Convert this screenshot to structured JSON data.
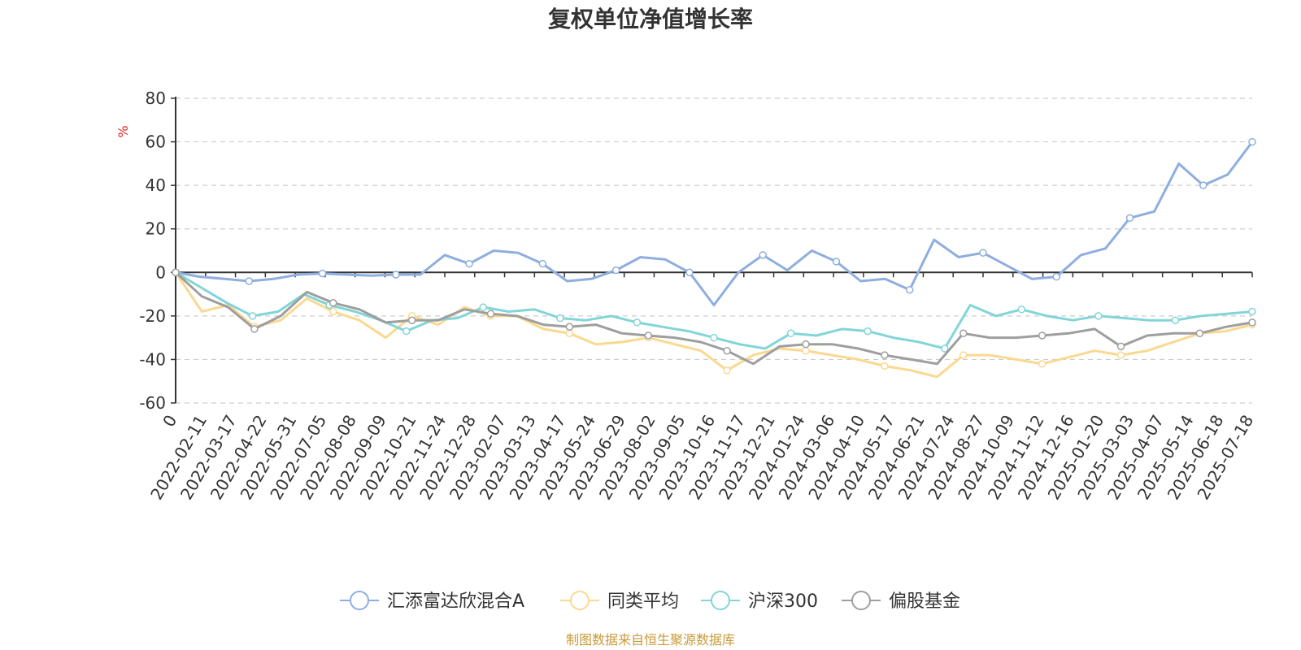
{
  "chart_data": {
    "type": "line",
    "title": "复权单位净值增长率",
    "ylabel": "%",
    "ylim": [
      -60,
      80
    ],
    "yticks": [
      80,
      60,
      40,
      20,
      0,
      -20,
      -40,
      -60
    ],
    "grid": true,
    "legend_position": "bottom",
    "x_tick_labels": [
      "0",
      "2022-02-11",
      "2022-03-17",
      "2022-04-22",
      "2022-05-31",
      "2022-07-05",
      "2022-08-08",
      "2022-09-09",
      "2022-10-21",
      "2022-11-24",
      "2022-12-28",
      "2023-02-07",
      "2023-03-13",
      "2023-04-17",
      "2023-05-24",
      "2023-06-29",
      "2023-08-02",
      "2023-09-05",
      "2023-10-16",
      "2023-11-17",
      "2023-12-21",
      "2024-01-24",
      "2024-03-06",
      "2024-04-10",
      "2024-05-17",
      "2024-06-21",
      "2024-07-24",
      "2024-08-27",
      "2024-10-09",
      "2024-11-12",
      "2024-12-16",
      "2025-01-20",
      "2025-03-03",
      "2025-04-07",
      "2025-05-14",
      "2025-06-18",
      "2025-07-18"
    ],
    "series": [
      {
        "name": "汇添富达欣混合A",
        "color": "#8eaee0",
        "values": [
          0,
          -2,
          -3,
          -4,
          -3,
          -1,
          -0.5,
          -1,
          -1.5,
          -1,
          -1,
          8,
          4,
          10,
          9,
          4,
          -4,
          -3,
          1,
          7,
          6,
          0,
          -15,
          0,
          8,
          1,
          10,
          5,
          -4,
          -3,
          -8,
          15,
          7,
          9,
          3,
          -3,
          -2,
          8,
          11,
          25,
          28,
          50,
          40,
          45,
          60
        ]
      },
      {
        "name": "同类平均",
        "color": "#fbd88f",
        "values": [
          0,
          -18,
          -15,
          -25,
          -22,
          -12,
          -18,
          -22,
          -30,
          -20,
          -24,
          -16,
          -20,
          -20,
          -26,
          -28,
          -33,
          -32,
          -30,
          -33,
          -36,
          -45,
          -38,
          -35,
          -36,
          -38,
          -40,
          -43,
          -45,
          -48,
          -38,
          -38,
          -40,
          -42,
          -39,
          -36,
          -38,
          -36,
          -32,
          -28,
          -27,
          -24
        ]
      },
      {
        "name": "沪深300",
        "color": "#82d5d7",
        "values": [
          0,
          -7,
          -14,
          -20,
          -18,
          -10,
          -15,
          -18,
          -22,
          -27,
          -22,
          -21,
          -16,
          -18,
          -17,
          -21,
          -22,
          -20,
          -23,
          -25,
          -27,
          -30,
          -33,
          -35,
          -28,
          -29,
          -26,
          -27,
          -30,
          -32,
          -35,
          -15,
          -20,
          -17,
          -20,
          -22,
          -20,
          -21,
          -22,
          -22,
          -20,
          -19,
          -18
        ]
      },
      {
        "name": "偏股基金",
        "color": "#9e9e9e",
        "values": [
          0,
          -11,
          -16,
          -26,
          -20,
          -9,
          -14,
          -17,
          -23,
          -22,
          -22,
          -17,
          -19,
          -20,
          -24,
          -25,
          -24,
          -28,
          -29,
          -30,
          -32,
          -36,
          -42,
          -34,
          -33,
          -33,
          -35,
          -38,
          -40,
          -42,
          -28,
          -30,
          -30,
          -29,
          -28,
          -26,
          -34,
          -29,
          -28,
          -28,
          -25,
          -23
        ]
      }
    ]
  },
  "footer": {
    "source": "制图数据来自恒生聚源数据库"
  }
}
